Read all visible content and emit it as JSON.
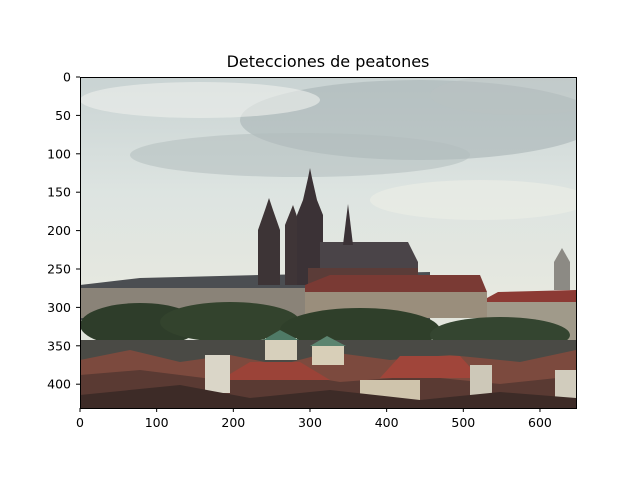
{
  "figure": {
    "title": "Detecciones de peatones"
  },
  "image_plot": {
    "x_ticks": [
      0,
      100,
      200,
      300,
      400,
      500,
      600
    ],
    "y_ticks": [
      0,
      50,
      100,
      150,
      200,
      250,
      300,
      350,
      400
    ],
    "x_range": [
      0,
      647
    ],
    "y_range": [
      0,
      431
    ]
  }
}
